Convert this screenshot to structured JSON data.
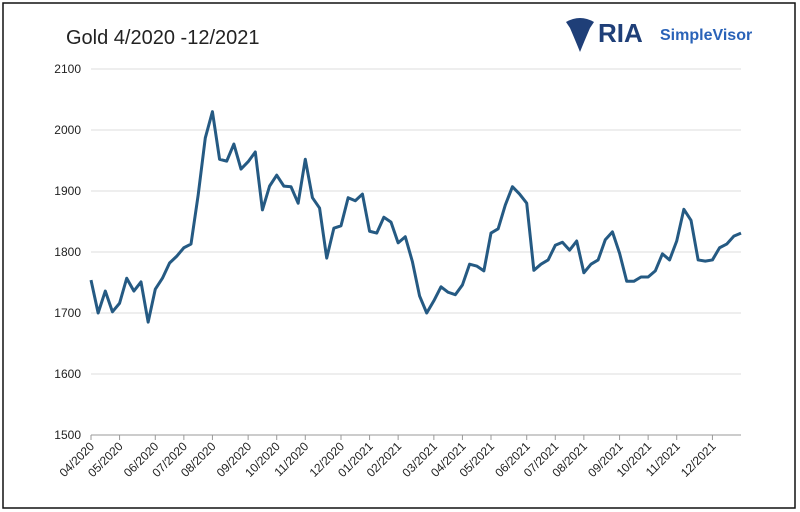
{
  "logo": {
    "name": "RIA",
    "product": "SimpleVisor"
  },
  "chart_data": {
    "type": "line",
    "title": "Gold 4/2020 -12/2021",
    "categories": [
      "04/2020",
      null,
      null,
      null,
      "05/2020",
      null,
      null,
      null,
      null,
      "06/2020",
      null,
      null,
      null,
      "07/2020",
      null,
      null,
      null,
      "08/2020",
      null,
      null,
      null,
      null,
      "09/2020",
      null,
      null,
      null,
      "10/2020",
      null,
      null,
      null,
      "11/2020",
      null,
      null,
      null,
      null,
      "12/2020",
      null,
      null,
      null,
      "01/2021",
      null,
      null,
      null,
      "02/2021",
      null,
      null,
      null,
      null,
      "03/2021",
      null,
      null,
      null,
      "04/2021",
      null,
      null,
      null,
      "05/2021",
      null,
      null,
      null,
      null,
      "06/2021",
      null,
      null,
      null,
      "07/2021",
      null,
      null,
      null,
      "08/2021",
      null,
      null,
      null,
      null,
      "09/2021",
      null,
      null,
      null,
      "10/2021",
      null,
      null,
      null,
      "11/2021",
      null,
      null,
      null,
      null,
      "12/2021",
      null,
      null,
      null,
      null
    ],
    "values": [
      1754,
      1700,
      1736,
      1702,
      1716,
      1757,
      1736,
      1751,
      1685,
      1739,
      1757,
      1782,
      1793,
      1807,
      1813,
      1893,
      1987,
      2030,
      1952,
      1949,
      1977,
      1936,
      1948,
      1964,
      1869,
      1908,
      1926,
      1908,
      1907,
      1880,
      1952,
      1889,
      1872,
      1790,
      1839,
      1843,
      1889,
      1884,
      1895,
      1834,
      1831,
      1857,
      1849,
      1815,
      1825,
      1784,
      1728,
      1700,
      1720,
      1743,
      1734,
      1730,
      1746,
      1780,
      1777,
      1769,
      1831,
      1838,
      1877,
      1907,
      1895,
      1880,
      1770,
      1780,
      1787,
      1811,
      1816,
      1803,
      1818,
      1766,
      1780,
      1787,
      1820,
      1833,
      1798,
      1752,
      1752,
      1759,
      1759,
      1769,
      1797,
      1787,
      1818,
      1870,
      1852,
      1787,
      1785,
      1787,
      1807,
      1813,
      1826,
      1831
    ],
    "color": "#255a83",
    "ylim": [
      1500,
      2100
    ],
    "yticks": [
      1500,
      1600,
      1700,
      1800,
      1900,
      2000,
      2100
    ],
    "grid": true
  }
}
